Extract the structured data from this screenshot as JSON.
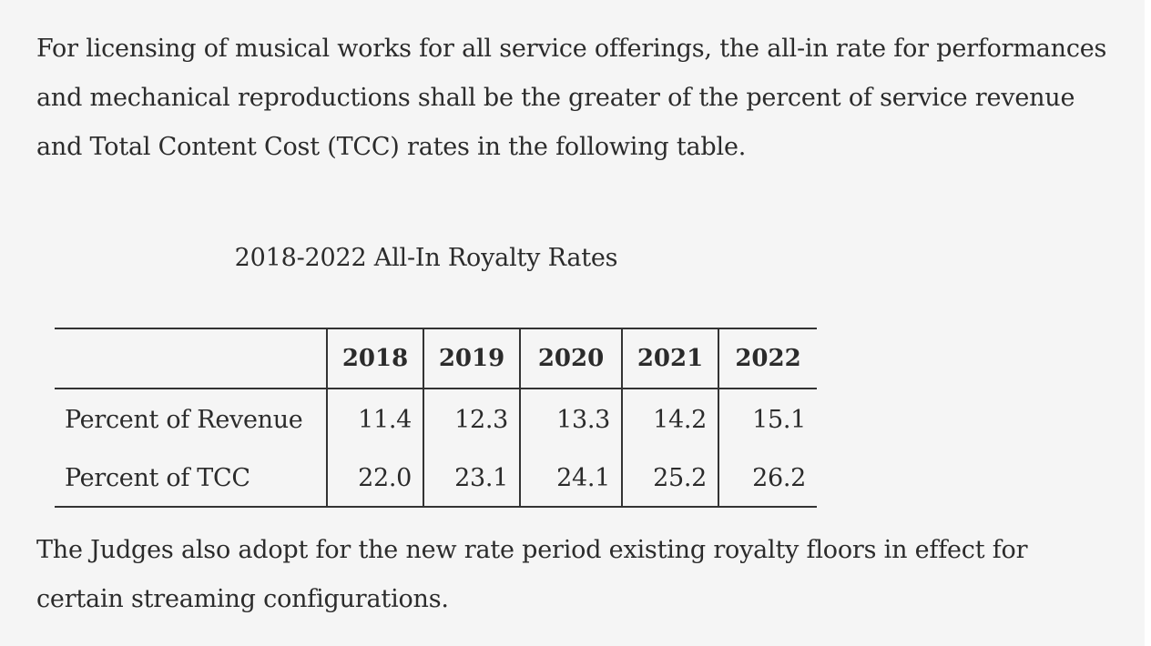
{
  "intro_text": "For licensing of musical works for all service offerings, the all-in rate for performances and mechanical reproductions shall be the greater of the percent of service revenue and Total Content Cost (TCC) rates in the following table.",
  "table": {
    "title": "2018-2022 All-In Royalty Rates",
    "corner_label": "",
    "columns": [
      "2018",
      "2019",
      "2020",
      "2021",
      "2022"
    ],
    "rows": [
      {
        "label": "Percent of Revenue",
        "values": [
          "11.4",
          "12.3",
          "13.3",
          "14.2",
          "15.1"
        ]
      },
      {
        "label": "Percent of TCC",
        "values": [
          "22.0",
          "23.1",
          "24.1",
          "25.2",
          "26.2"
        ]
      }
    ]
  },
  "outro_text": "The Judges also adopt for the new rate period existing royalty floors in effect for certain streaming configurations."
}
